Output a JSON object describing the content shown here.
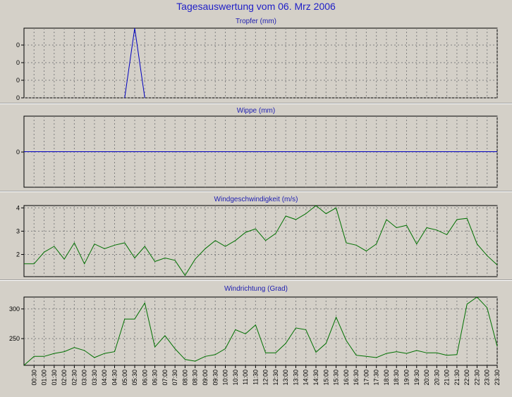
{
  "page_title": "Tagesauswertung vom 06. Mrz 2006",
  "x_labels": [
    "00:30",
    "01:00",
    "01:30",
    "02:00",
    "02:30",
    "03:00",
    "03:30",
    "04:00",
    "04:30",
    "05:00",
    "05:30",
    "06:00",
    "06:30",
    "07:00",
    "07:30",
    "08:00",
    "08:30",
    "09:00",
    "09:30",
    "10:00",
    "10:30",
    "11:00",
    "11:30",
    "12:00",
    "12:30",
    "13:00",
    "13:30",
    "14:00",
    "14:30",
    "15:00",
    "15:30",
    "16:00",
    "16:30",
    "17:00",
    "17:30",
    "18:00",
    "18:30",
    "19:00",
    "19:30",
    "20:00",
    "20:30",
    "21:00",
    "21:30",
    "22:00",
    "22:30",
    "23:00",
    "23:30"
  ],
  "chart_data": [
    {
      "type": "line",
      "title": "Tropfer (mm)",
      "ylim": [
        0,
        1
      ],
      "y_ticks": [
        "0",
        "0",
        "0",
        "0"
      ],
      "color": "#0000c0",
      "series": [
        {
          "x": [
            "05:00",
            "05:30",
            "06:00"
          ],
          "values": [
            0,
            1,
            0
          ]
        }
      ]
    },
    {
      "type": "line",
      "title": "Wippe (mm)",
      "ylim": [
        -1,
        1
      ],
      "y_ticks": [
        "0"
      ],
      "color": "#0000c0",
      "series": [
        {
          "x": [
            "00:00",
            "23:30"
          ],
          "values": [
            0,
            0
          ]
        }
      ]
    },
    {
      "type": "line",
      "title": "Windgeschwindigkeit (m/s)",
      "ylim": [
        1.05,
        4.1
      ],
      "y_ticks": [
        "4",
        "3",
        "2"
      ],
      "color": "#007000",
      "series": [
        {
          "x": [
            "00:00",
            "00:30",
            "01:00",
            "01:30",
            "02:00",
            "02:30",
            "03:00",
            "03:30",
            "04:00",
            "04:30",
            "05:00",
            "05:30",
            "06:00",
            "06:30",
            "07:00",
            "07:30",
            "08:00",
            "08:30",
            "09:00",
            "09:30",
            "10:00",
            "10:30",
            "11:00",
            "11:30",
            "12:00",
            "12:30",
            "13:00",
            "13:30",
            "14:00",
            "14:30",
            "15:00",
            "15:30",
            "16:00",
            "16:30",
            "17:00",
            "17:30",
            "18:00",
            "18:30",
            "19:00",
            "19:30",
            "20:00",
            "20:30",
            "21:00",
            "21:30",
            "22:00",
            "22:30",
            "23:00",
            "23:30"
          ],
          "values": [
            1.6,
            1.6,
            2.1,
            2.35,
            1.8,
            2.5,
            1.6,
            2.45,
            2.25,
            2.4,
            2.5,
            1.85,
            2.35,
            1.7,
            1.85,
            1.75,
            1.1,
            1.8,
            2.25,
            2.6,
            2.35,
            2.6,
            2.95,
            3.1,
            2.6,
            2.9,
            3.65,
            3.5,
            3.75,
            4.1,
            3.75,
            4.0,
            2.5,
            2.4,
            2.15,
            2.45,
            3.5,
            3.15,
            3.25,
            2.45,
            3.15,
            3.05,
            2.85,
            3.5,
            3.55,
            2.45,
            1.95,
            1.55
          ]
        }
      ]
    },
    {
      "type": "line",
      "title": "Windrichtung (Grad)",
      "ylim": [
        205,
        320
      ],
      "y_ticks": [
        "300",
        "250"
      ],
      "color": "#007000",
      "series": [
        {
          "x": [
            "00:00",
            "00:30",
            "01:00",
            "01:30",
            "02:00",
            "02:30",
            "03:00",
            "03:30",
            "04:00",
            "04:30",
            "05:00",
            "05:30",
            "06:00",
            "06:30",
            "07:00",
            "07:30",
            "08:00",
            "08:30",
            "09:00",
            "09:30",
            "10:00",
            "10:30",
            "11:00",
            "11:30",
            "12:00",
            "12:30",
            "13:00",
            "13:30",
            "14:00",
            "14:30",
            "15:00",
            "15:30",
            "16:00",
            "16:30",
            "17:00",
            "17:30",
            "18:00",
            "18:30",
            "19:00",
            "19:30",
            "20:00",
            "20:30",
            "21:00",
            "21:30",
            "22:00",
            "22:30",
            "23:00",
            "23:30"
          ],
          "values": [
            205,
            220,
            220,
            225,
            228,
            235,
            230,
            218,
            225,
            228,
            283,
            283,
            310,
            236,
            255,
            233,
            215,
            212,
            220,
            223,
            233,
            265,
            258,
            273,
            226,
            226,
            242,
            268,
            265,
            227,
            242,
            286,
            247,
            222,
            220,
            218,
            225,
            228,
            225,
            230,
            226,
            226,
            222,
            223,
            308,
            320,
            302,
            237
          ]
        }
      ]
    }
  ]
}
